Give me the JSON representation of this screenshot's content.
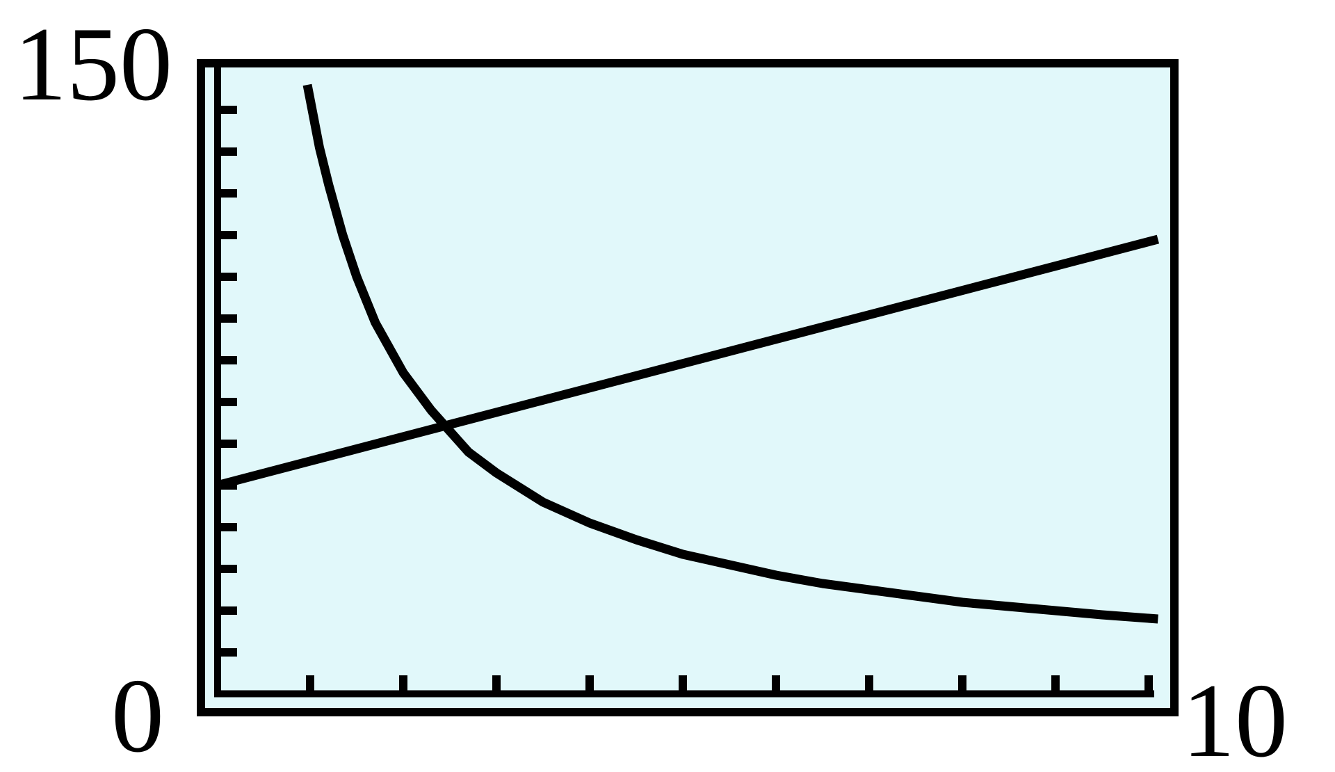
{
  "chart_data": {
    "type": "line",
    "title": "",
    "xlabel": "",
    "ylabel": "",
    "xlim": [
      0,
      10
    ],
    "ylim": [
      0,
      150
    ],
    "x_tick_step": 1,
    "y_tick_step": 10,
    "grid": false,
    "legend": "none",
    "plot_bg": "#e1f8fa",
    "stroke_color": "#000000",
    "tick_labels": {
      "y_top": "150",
      "origin": "0",
      "x_right": "10"
    },
    "series": [
      {
        "name": "rising-line",
        "shape": "linear",
        "points": [
          [
            0,
            50
          ],
          [
            10.1,
            109
          ]
        ]
      },
      {
        "name": "falling-curve",
        "shape": "hyperbolic",
        "points": [
          [
            0.97,
            146
          ],
          [
            1.1,
            131
          ],
          [
            1.2,
            122
          ],
          [
            1.35,
            110
          ],
          [
            1.5,
            100
          ],
          [
            1.7,
            89
          ],
          [
            2,
            77
          ],
          [
            2.3,
            68
          ],
          [
            2.7,
            58
          ],
          [
            3,
            53
          ],
          [
            3.5,
            46
          ],
          [
            4,
            41
          ],
          [
            4.5,
            37
          ],
          [
            5,
            33.5
          ],
          [
            5.5,
            31
          ],
          [
            6,
            28.5
          ],
          [
            6.5,
            26.5
          ],
          [
            7,
            25
          ],
          [
            7.5,
            23.5
          ],
          [
            8,
            22
          ],
          [
            8.5,
            21
          ],
          [
            9,
            20
          ],
          [
            9.5,
            19
          ],
          [
            10.1,
            18
          ]
        ]
      }
    ]
  }
}
